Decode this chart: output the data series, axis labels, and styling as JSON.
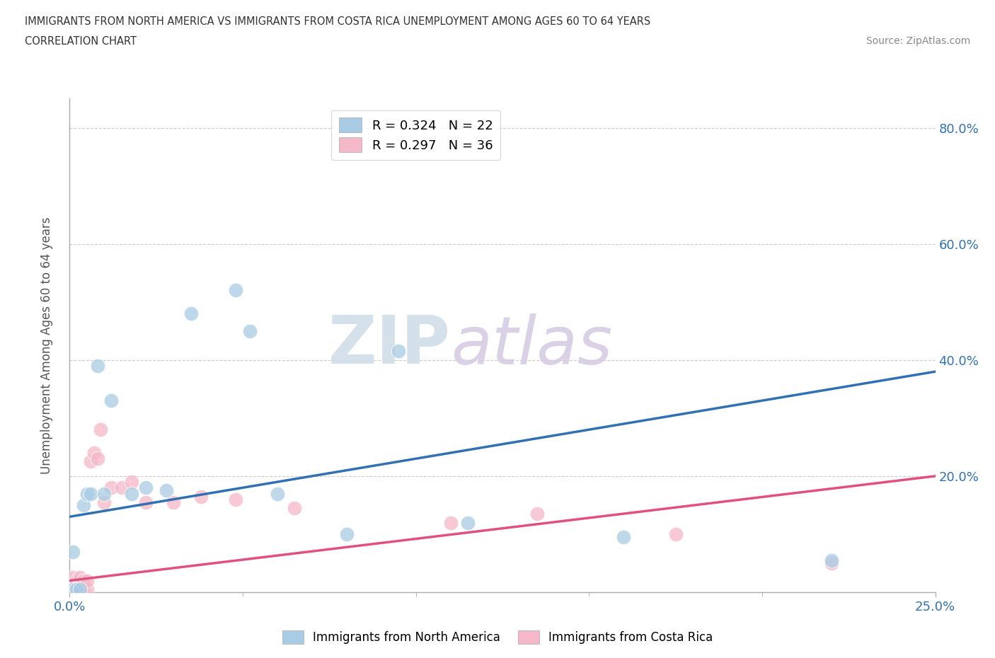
{
  "title_line1": "IMMIGRANTS FROM NORTH AMERICA VS IMMIGRANTS FROM COSTA RICA UNEMPLOYMENT AMONG AGES 60 TO 64 YEARS",
  "title_line2": "CORRELATION CHART",
  "source": "Source: ZipAtlas.com",
  "ylabel": "Unemployment Among Ages 60 to 64 years",
  "xlim": [
    0,
    0.25
  ],
  "ylim": [
    0,
    0.85
  ],
  "xtick_labels": [
    "0.0%",
    "25.0%"
  ],
  "ytick_labels": [
    "20.0%",
    "40.0%",
    "60.0%",
    "80.0%"
  ],
  "ytick_positions": [
    0.2,
    0.4,
    0.6,
    0.8
  ],
  "legend_r1": "R = 0.324",
  "legend_n1": "N = 22",
  "legend_r2": "R = 0.297",
  "legend_n2": "N = 36",
  "label1": "Immigrants from North America",
  "label2": "Immigrants from Costa Rica",
  "color1": "#a8cce4",
  "color2": "#f4b8c8",
  "trendline1_color": "#3070b3",
  "trendline2_color": "#e05080",
  "watermark_zip": "ZIP",
  "watermark_atlas": "atlas",
  "trendline1_x0": 0.0,
  "trendline1_y0": 0.13,
  "trendline1_x1": 0.25,
  "trendline1_y1": 0.38,
  "trendline2_x0": 0.0,
  "trendline2_y0": 0.02,
  "trendline2_x1": 0.25,
  "trendline2_y1": 0.2,
  "north_america_x": [
    0.001,
    0.001,
    0.002,
    0.003,
    0.004,
    0.005,
    0.006,
    0.008,
    0.01,
    0.012,
    0.018,
    0.022,
    0.028,
    0.035,
    0.048,
    0.052,
    0.06,
    0.08,
    0.095,
    0.115,
    0.16,
    0.22
  ],
  "north_america_y": [
    0.005,
    0.07,
    0.005,
    0.005,
    0.15,
    0.17,
    0.17,
    0.39,
    0.17,
    0.33,
    0.17,
    0.18,
    0.175,
    0.48,
    0.52,
    0.45,
    0.17,
    0.1,
    0.415,
    0.12,
    0.095,
    0.055
  ],
  "costa_rica_x": [
    0.001,
    0.001,
    0.001,
    0.001,
    0.001,
    0.001,
    0.002,
    0.002,
    0.002,
    0.002,
    0.003,
    0.003,
    0.003,
    0.003,
    0.004,
    0.004,
    0.004,
    0.005,
    0.005,
    0.006,
    0.007,
    0.008,
    0.009,
    0.01,
    0.012,
    0.015,
    0.018,
    0.022,
    0.03,
    0.038,
    0.048,
    0.065,
    0.11,
    0.135,
    0.175,
    0.22
  ],
  "costa_rica_y": [
    0.005,
    0.005,
    0.01,
    0.015,
    0.02,
    0.025,
    0.005,
    0.01,
    0.015,
    0.02,
    0.005,
    0.01,
    0.02,
    0.025,
    0.005,
    0.01,
    0.02,
    0.005,
    0.02,
    0.225,
    0.24,
    0.23,
    0.28,
    0.155,
    0.18,
    0.18,
    0.19,
    0.155,
    0.155,
    0.165,
    0.16,
    0.145,
    0.12,
    0.135,
    0.1,
    0.05
  ]
}
